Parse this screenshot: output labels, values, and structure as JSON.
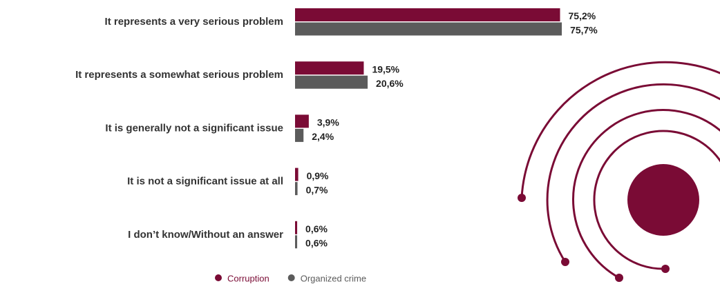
{
  "chart_data": {
    "type": "bar",
    "orientation": "horizontal",
    "categories": [
      "It represents a very serious problem",
      "It represents a somewhat serious problem",
      "It is generally not a significant issue",
      "It is not a significant issue at all",
      "I don’t know/Without an answer"
    ],
    "series": [
      {
        "name": "Corruption",
        "color": "#7a0b35",
        "values": [
          75.2,
          19.5,
          3.9,
          0.9,
          0.6
        ],
        "value_labels": [
          "75,2%",
          "19,5%",
          "3,9%",
          "0,9%",
          "0,6%"
        ]
      },
      {
        "name": "Organized crime",
        "color": "#5b5b5b",
        "values": [
          75.7,
          20.6,
          2.4,
          0.7,
          0.6
        ],
        "value_labels": [
          "75,7%",
          "20,6%",
          "2,4%",
          "0,7%",
          "0,6%"
        ]
      }
    ]
  }
}
